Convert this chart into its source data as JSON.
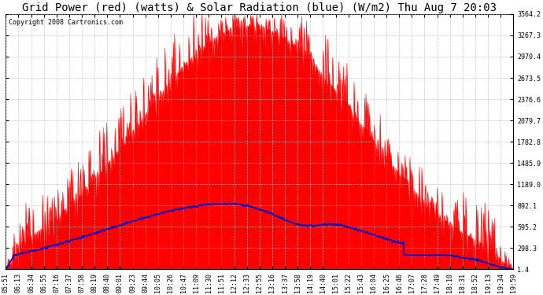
{
  "title": "Grid Power (red) (watts) & Solar Radiation (blue) (W/m2) Thu Aug 7 20:03",
  "copyright": "Copyright 2008 Cartronics.com",
  "yticks": [
    1.4,
    298.3,
    595.2,
    892.1,
    1189.0,
    1485.9,
    1782.8,
    2079.7,
    2376.6,
    2673.5,
    2970.4,
    3267.3,
    3564.2
  ],
  "ymin": 0,
  "ymax": 3564.2,
  "xtick_labels": [
    "05:51",
    "06:13",
    "06:34",
    "06:55",
    "07:16",
    "07:37",
    "07:58",
    "08:19",
    "08:40",
    "09:01",
    "09:23",
    "09:44",
    "10:05",
    "10:26",
    "10:47",
    "11:09",
    "11:30",
    "11:51",
    "12:12",
    "12:33",
    "12:55",
    "13:16",
    "13:37",
    "13:58",
    "14:19",
    "14:40",
    "15:01",
    "15:22",
    "15:43",
    "16:04",
    "16:25",
    "16:46",
    "17:07",
    "17:28",
    "17:49",
    "18:10",
    "18:31",
    "18:52",
    "19:13",
    "19:34",
    "19:59"
  ],
  "bg_color": "#ffffff",
  "plot_bg": "#ffffff",
  "grid_color": "#bbbbbb",
  "red_color": "#ff0000",
  "blue_color": "#0000cc",
  "title_fontsize": 10,
  "copyright_fontsize": 6,
  "tick_fontsize": 6,
  "figwidth": 6.9,
  "figheight": 3.75,
  "dpi": 100
}
